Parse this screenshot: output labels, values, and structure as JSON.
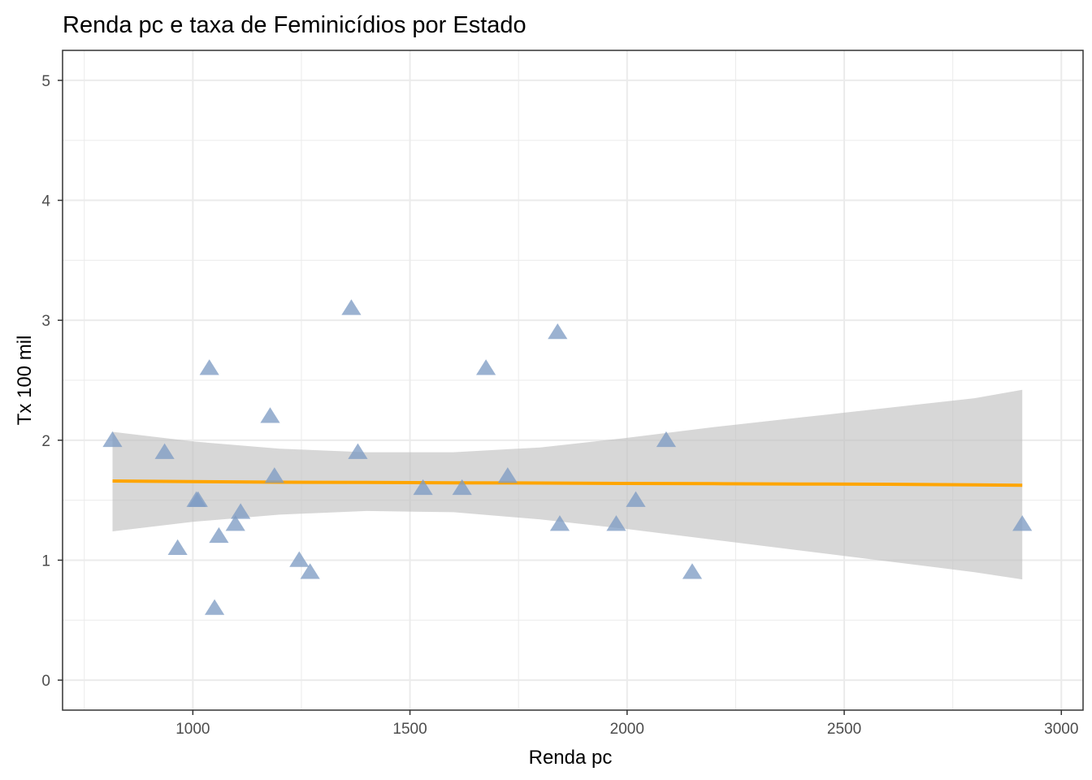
{
  "chart_data": {
    "type": "scatter",
    "title": "Renda pc e taxa de Feminicídios por Estado",
    "xlabel": "Renda pc",
    "ylabel": "Tx 100 mil",
    "xlim": [
      700,
      3050
    ],
    "ylim": [
      -0.25,
      5.25
    ],
    "x_ticks": [
      1000,
      1500,
      2000,
      2500,
      3000
    ],
    "y_ticks": [
      0,
      1,
      2,
      3,
      4,
      5
    ],
    "x_minor_ticks": [
      750,
      1250,
      1750,
      2250,
      2750
    ],
    "y_minor_ticks": [
      0.5,
      1.5,
      2.5,
      3.5,
      4.5
    ],
    "grid": true,
    "point_shape": "triangle",
    "colors": {
      "points": "#7f9cc4",
      "trend_line": "#ffa500",
      "confidence_band": "#bebebe",
      "grid": "#ebebeb",
      "panel_border": "#333333"
    },
    "points": [
      {
        "x": 815,
        "y": 2.0
      },
      {
        "x": 935,
        "y": 1.9
      },
      {
        "x": 965,
        "y": 1.1
      },
      {
        "x": 1008,
        "y": 1.5
      },
      {
        "x": 1012,
        "y": 1.5
      },
      {
        "x": 1038,
        "y": 2.6
      },
      {
        "x": 1050,
        "y": 0.6
      },
      {
        "x": 1060,
        "y": 1.2
      },
      {
        "x": 1098,
        "y": 1.3
      },
      {
        "x": 1110,
        "y": 1.4
      },
      {
        "x": 1178,
        "y": 2.2
      },
      {
        "x": 1188,
        "y": 1.7
      },
      {
        "x": 1245,
        "y": 1.0
      },
      {
        "x": 1270,
        "y": 0.9
      },
      {
        "x": 1365,
        "y": 3.1
      },
      {
        "x": 1380,
        "y": 1.9
      },
      {
        "x": 1530,
        "y": 1.6
      },
      {
        "x": 1620,
        "y": 1.6
      },
      {
        "x": 1675,
        "y": 2.6
      },
      {
        "x": 1725,
        "y": 1.7
      },
      {
        "x": 1840,
        "y": 2.9
      },
      {
        "x": 1845,
        "y": 1.3
      },
      {
        "x": 1975,
        "y": 1.3
      },
      {
        "x": 2020,
        "y": 1.5
      },
      {
        "x": 2090,
        "y": 2.0
      },
      {
        "x": 2150,
        "y": 0.9
      },
      {
        "x": 2910,
        "y": 1.3
      }
    ],
    "trend": {
      "x": [
        815,
        1000,
        1200,
        1400,
        1600,
        1800,
        2000,
        2200,
        2400,
        2600,
        2800,
        2910
      ],
      "y": [
        1.66,
        1.655,
        1.65,
        1.648,
        1.645,
        1.643,
        1.64,
        1.638,
        1.635,
        1.633,
        1.628,
        1.625
      ],
      "lower": [
        1.24,
        1.32,
        1.38,
        1.41,
        1.4,
        1.34,
        1.26,
        1.17,
        1.08,
        0.99,
        0.9,
        0.84
      ],
      "upper": [
        2.07,
        1.99,
        1.93,
        1.9,
        1.9,
        1.94,
        2.02,
        2.11,
        2.19,
        2.27,
        2.35,
        2.42
      ]
    }
  }
}
